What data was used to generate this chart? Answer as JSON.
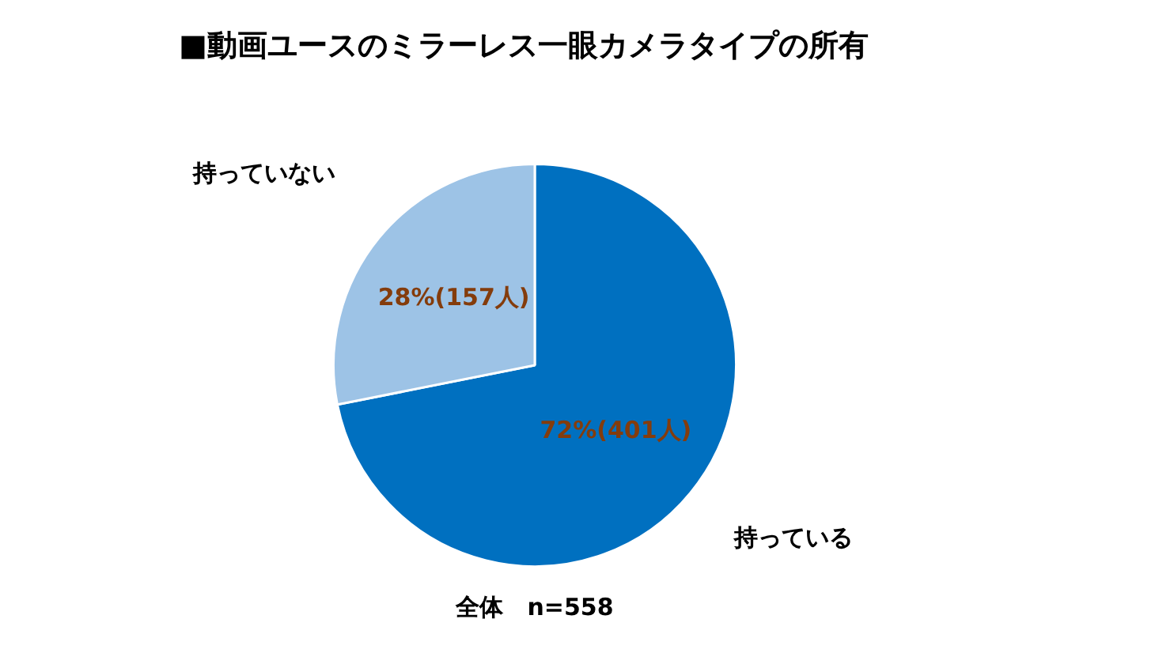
{
  "chart_data": {
    "type": "pie",
    "title": "■動画ユースのミラーレス一眼カメラタイプの所有",
    "categories": [
      "持っている",
      "持っていない"
    ],
    "values": [
      401,
      157
    ],
    "value_labels": [
      "72%(401人)",
      "28%(157人)"
    ],
    "colors": [
      "#0070c0",
      "#9dc3e6"
    ],
    "legend": false,
    "annotations": [
      "全体　n=558"
    ]
  }
}
